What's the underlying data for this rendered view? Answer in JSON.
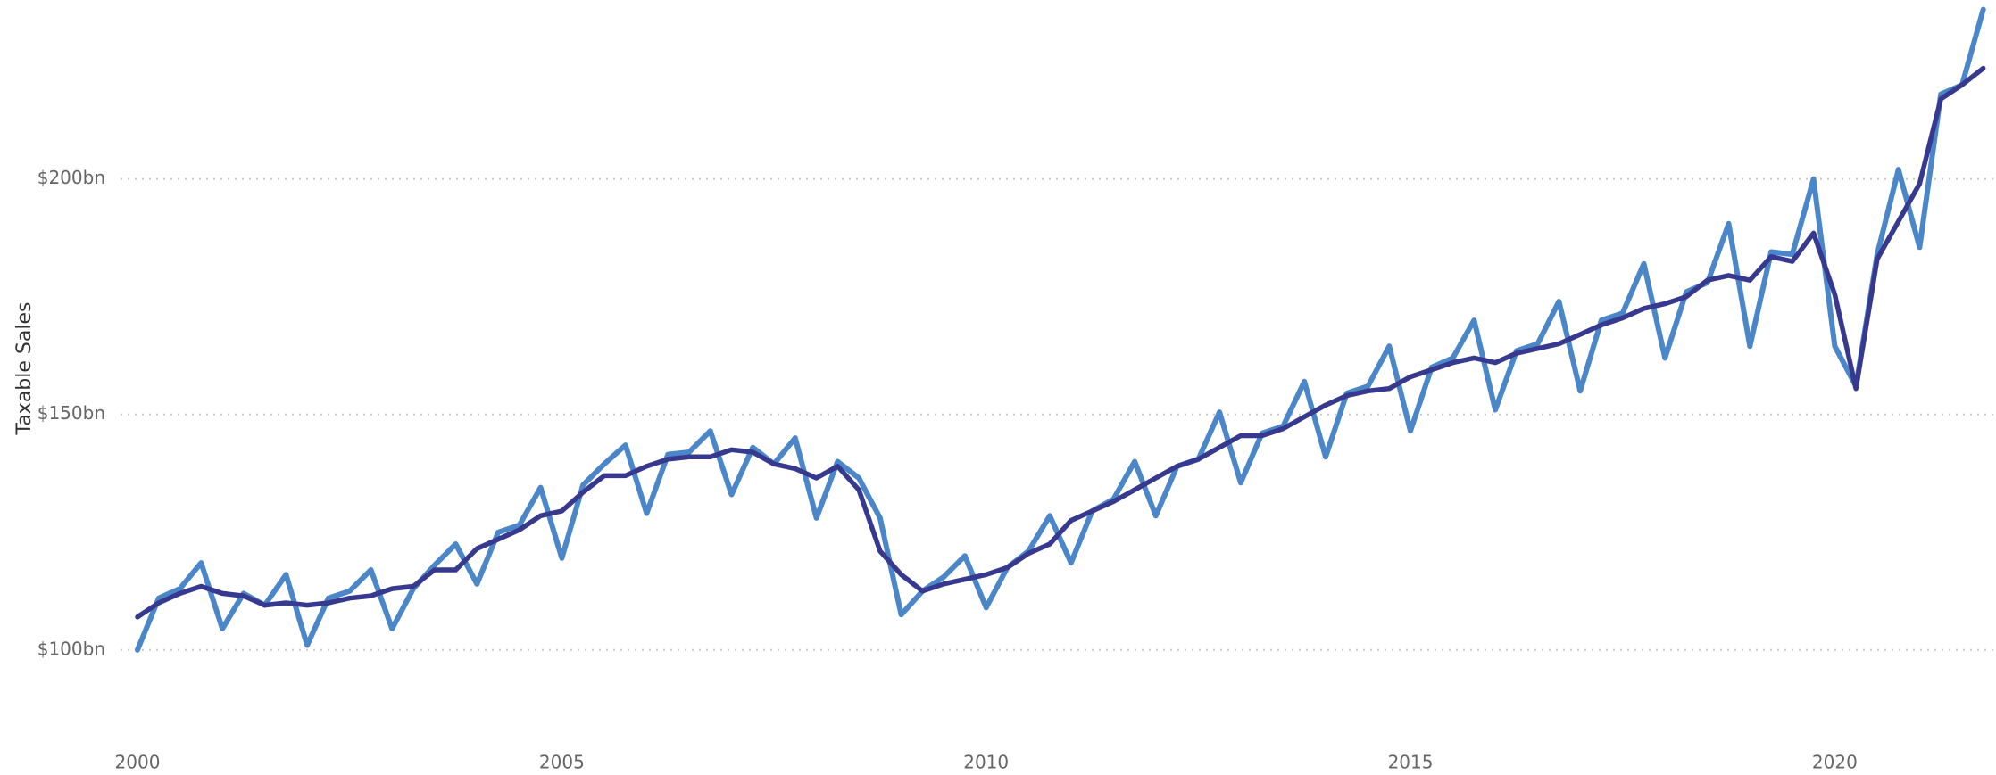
{
  "chart_data": {
    "type": "line",
    "y_label": "Taxable Sales",
    "x": [
      2000,
      2000.25,
      2000.5,
      2000.75,
      2001,
      2001.25,
      2001.5,
      2001.75,
      2002,
      2002.25,
      2002.5,
      2002.75,
      2003,
      2003.25,
      2003.5,
      2003.75,
      2004,
      2004.25,
      2004.5,
      2004.75,
      2005,
      2005.25,
      2005.5,
      2005.75,
      2006,
      2006.25,
      2006.5,
      2006.75,
      2007,
      2007.25,
      2007.5,
      2007.75,
      2008,
      2008.25,
      2008.5,
      2008.75,
      2009,
      2009.25,
      2009.5,
      2009.75,
      2010,
      2010.25,
      2010.5,
      2010.75,
      2011,
      2011.25,
      2011.5,
      2011.75,
      2012,
      2012.25,
      2012.5,
      2012.75,
      2013,
      2013.25,
      2013.5,
      2013.75,
      2014,
      2014.25,
      2014.5,
      2014.75,
      2015,
      2015.25,
      2015.5,
      2015.75,
      2016,
      2016.25,
      2016.5,
      2016.75,
      2017,
      2017.25,
      2017.5,
      2017.75,
      2018,
      2018.25,
      2018.5,
      2018.75,
      2019,
      2019.25,
      2019.5,
      2019.75,
      2020,
      2020.25,
      2020.5,
      2020.75,
      2021,
      2021.25,
      2021.5,
      2021.75
    ],
    "series": [
      {
        "color": "#4a86c8",
        "values": [
          100,
          111,
          113,
          118.5,
          104.5,
          112,
          109.5,
          116,
          101,
          111,
          112.5,
          117,
          104.5,
          113,
          118,
          122.5,
          114,
          125,
          126.5,
          134.5,
          119.5,
          135,
          139.5,
          143.5,
          129,
          141.5,
          142,
          146.5,
          133,
          143,
          139.5,
          145,
          128,
          140,
          136.5,
          128,
          107.5,
          112.5,
          115.5,
          120,
          109,
          117.5,
          121,
          128.5,
          118.5,
          129.5,
          132,
          140,
          128.5,
          139,
          140.5,
          150.5,
          135.5,
          146,
          147.5,
          157,
          141,
          154.5,
          156,
          164.5,
          146.5,
          160,
          162,
          170,
          151,
          163.5,
          165,
          174,
          155,
          170,
          171.5,
          182,
          162,
          176,
          178,
          190.5,
          164.5,
          184.5,
          184,
          200,
          164.5,
          156,
          184,
          202,
          185.5,
          218,
          220,
          236
        ]
      },
      {
        "color": "#37398f",
        "values": [
          107,
          110,
          112,
          113.5,
          112,
          111.5,
          109.5,
          110,
          109.5,
          110,
          111,
          111.5,
          113,
          113.5,
          117,
          117,
          121.5,
          123.5,
          125.5,
          128.5,
          129.5,
          133.5,
          137,
          137,
          139,
          140.5,
          141,
          141,
          142.5,
          142,
          139.5,
          138.5,
          136.5,
          139,
          134,
          121,
          116,
          112.5,
          114,
          115,
          116,
          117.5,
          120.5,
          122.5,
          127.5,
          129.5,
          131.5,
          134,
          136.5,
          139,
          140.5,
          143,
          145.5,
          145.5,
          147,
          149.5,
          152,
          154,
          155,
          155.5,
          158,
          159.5,
          161,
          162,
          161,
          163,
          164,
          165,
          167,
          169,
          170.5,
          172.5,
          173.5,
          175,
          178.5,
          179.5,
          178.5,
          183.5,
          182.5,
          188.5,
          175.5,
          155.5,
          183,
          191,
          199,
          217,
          220,
          223.5
        ]
      }
    ],
    "xlim": [
      1999.8,
      2021.9
    ],
    "xticks": [
      2000,
      2005,
      2010,
      2015,
      2020
    ],
    "ylim": [
      85,
      238
    ],
    "yticks": [
      {
        "value": 100,
        "label": "$100bn"
      },
      {
        "value": 150,
        "label": "$150bn"
      },
      {
        "value": 200,
        "label": "$200bn"
      }
    ],
    "grid": true
  }
}
